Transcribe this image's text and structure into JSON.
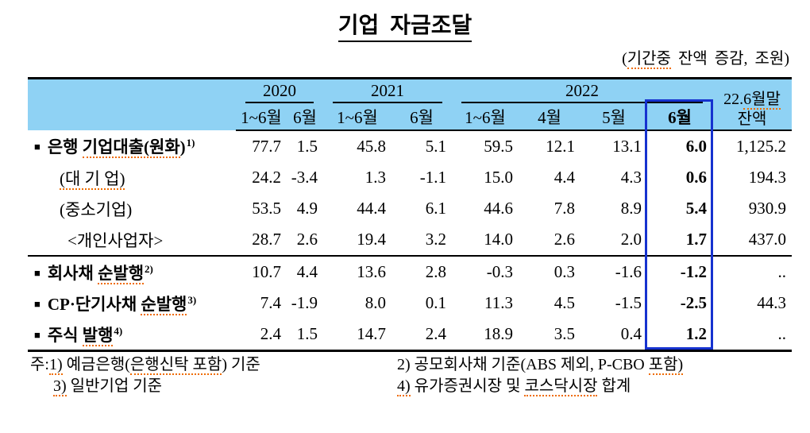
{
  "title": "기업  자금조달",
  "subtitle_parts": [
    {
      "t": "("
    },
    {
      "t": "기간중",
      "sq": true
    },
    {
      "t": " 잔액 증감, 조원)"
    }
  ],
  "colors": {
    "header_bg": "#8fd2f4",
    "highlight_border": "#1632cf",
    "squiggle": "#ef6c00"
  },
  "glyphs": {
    "bullet": "■"
  },
  "table": {
    "col_groups": [
      {
        "label": "2020",
        "span": 2
      },
      {
        "label": "2021",
        "span": 2
      },
      {
        "label": "2022",
        "span": 4
      }
    ],
    "subcols": [
      "1~6월",
      "6월",
      "1~6월",
      "6월",
      "1~6월",
      "4월",
      "5월",
      "6월"
    ],
    "highlight_index": 7,
    "balance_header": {
      "line1_parts": [
        {
          "t": "22."
        },
        {
          "t": "6월말",
          "sq": true
        }
      ],
      "line2": "잔액"
    },
    "rows": [
      {
        "bullet": true,
        "bold": true,
        "indent": 0,
        "label_parts": [
          {
            "t": "은행 "
          },
          {
            "t": "기업대출(원화",
            "sq": true
          },
          {
            "t": ")"
          },
          {
            "t": "1)",
            "sup": true
          }
        ],
        "values": [
          "77.7",
          "1.5",
          "45.8",
          "5.1",
          "59.5",
          "12.1",
          "13.1",
          "6.0",
          "1,125.2"
        ]
      },
      {
        "bullet": false,
        "bold": false,
        "indent": 1,
        "label_parts": [
          {
            "t": "(대 기 업)",
            "sq": true
          }
        ],
        "values": [
          "24.2",
          "-3.4",
          "1.3",
          "-1.1",
          "15.0",
          "4.4",
          "4.3",
          "0.6",
          "194.3"
        ]
      },
      {
        "bullet": false,
        "bold": false,
        "indent": 1,
        "label_parts": [
          {
            "t": "(중소기업)"
          }
        ],
        "values": [
          "53.5",
          "4.9",
          "44.4",
          "6.1",
          "44.6",
          "7.8",
          "8.9",
          "5.4",
          "930.9"
        ]
      },
      {
        "bullet": false,
        "bold": false,
        "indent": 2,
        "rule_below": true,
        "label_parts": [
          {
            "t": "<개인사업자>"
          }
        ],
        "values": [
          "28.7",
          "2.6",
          "19.4",
          "3.2",
          "14.0",
          "2.6",
          "2.0",
          "1.7",
          "437.0"
        ]
      },
      {
        "bullet": true,
        "bold": true,
        "indent": 0,
        "label_parts": [
          {
            "t": "회사채 "
          },
          {
            "t": "순발행",
            "sq": true
          },
          {
            "t": "2)",
            "sup": true
          }
        ],
        "values": [
          "10.7",
          "4.4",
          "13.6",
          "2.8",
          "-0.3",
          "0.3",
          "-1.6",
          "-1.2",
          ".."
        ]
      },
      {
        "bullet": true,
        "bold": true,
        "indent": 0,
        "label_parts": [
          {
            "t": "CP·단기사채 "
          },
          {
            "t": "순발행",
            "sq": true
          },
          {
            "t": "3)",
            "sup": true
          }
        ],
        "values": [
          "7.4",
          "-1.9",
          "8.0",
          "0.1",
          "11.3",
          "4.5",
          "-1.5",
          "-2.5",
          "44.3"
        ]
      },
      {
        "bullet": true,
        "bold": true,
        "indent": 0,
        "label_parts": [
          {
            "t": "주식 "
          },
          {
            "t": "발행",
            "sq": true
          },
          {
            "t": "4)",
            "sup": true
          }
        ],
        "values": [
          "2.4",
          "1.5",
          "14.7",
          "2.4",
          "18.9",
          "3.5",
          "0.4",
          "1.2",
          ".."
        ]
      }
    ]
  },
  "footnotes": {
    "prefix": "주:",
    "col1": [
      [
        {
          "t": "1)",
          "sq": true
        },
        {
          "t": " 예금은행("
        },
        {
          "t": "은행신탁 포함",
          "sq": true
        },
        {
          "t": ") 기준"
        }
      ],
      [
        {
          "t": "3)",
          "sq": true
        },
        {
          "t": " 일반기업 기준"
        }
      ]
    ],
    "col2": [
      [
        {
          "t": "2)"
        },
        {
          "t": " 공모회사채 기준(ABS 제외, P-CBO "
        },
        {
          "t": "포함)",
          "sq": true
        }
      ],
      [
        {
          "t": "4)",
          "sq": true
        },
        {
          "t": " 유가증권시장 및 "
        },
        {
          "t": "코스닥시장",
          "sq": true
        },
        {
          "t": " 합계"
        }
      ]
    ]
  }
}
